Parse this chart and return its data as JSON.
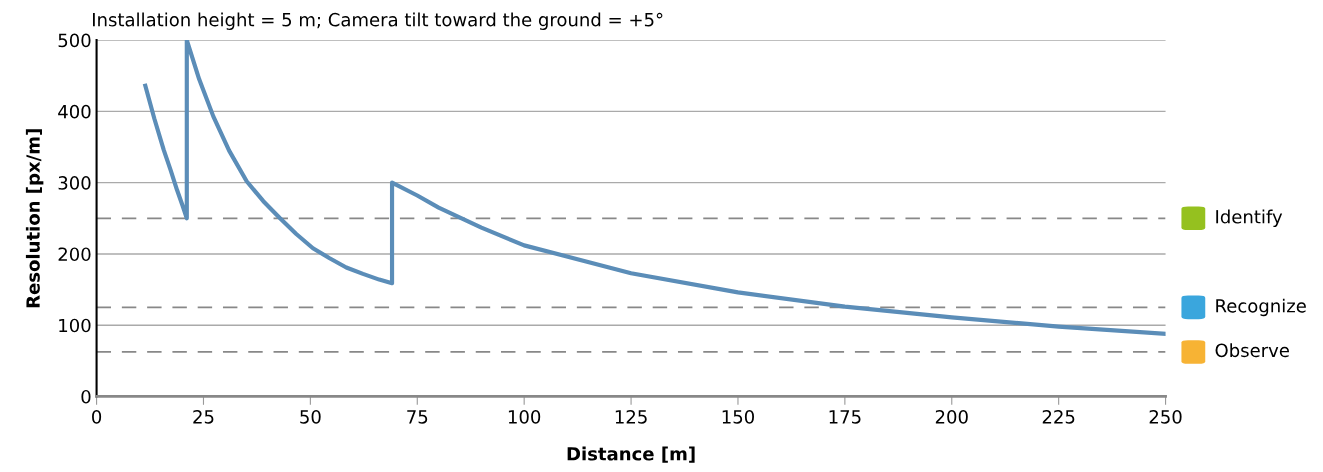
{
  "chart_data": {
    "type": "line",
    "title": "Installation height = 5 m; Camera tilt toward the ground = +5°",
    "xlabel": "Distance [m]",
    "ylabel": "Resolution [px/m]",
    "series": [
      {
        "color": "#5b8db8",
        "x": [
          11.4,
          13.5,
          15.7,
          17.3,
          18.8,
          20.1,
          21.1,
          21.1,
          24,
          27.3,
          31,
          35.1,
          39,
          42.9,
          46.7,
          50.6,
          54.5,
          58.4,
          62.3,
          66.1,
          69.1,
          69.1,
          75,
          80,
          90,
          100,
          125,
          150,
          175,
          200,
          225,
          250
        ],
        "values": [
          436,
          390,
          346,
          318,
          290,
          268,
          250,
          500,
          445,
          393,
          345,
          302,
          274,
          250,
          228,
          208,
          194,
          181,
          172,
          164,
          159,
          300,
          282,
          265,
          237,
          212,
          173,
          146,
          126,
          111,
          98,
          88
        ]
      }
    ],
    "xlim": [
      0,
      250
    ],
    "xticks": [
      0,
      25,
      50,
      75,
      100,
      125,
      150,
      175,
      200,
      225,
      250
    ],
    "ylim": [
      0,
      500
    ],
    "yticks": [
      0,
      100,
      200,
      300,
      400,
      500
    ],
    "grid": "y",
    "marker": "none",
    "line_style": "solid",
    "ref_lines": [
      {
        "axis": "y",
        "value": 250,
        "label": "Identify",
        "color": "#888888",
        "line_style": "dashed"
      },
      {
        "axis": "y",
        "value": 125,
        "label": "Recognize",
        "color": "#888888",
        "line_style": "dashed"
      },
      {
        "axis": "y",
        "value": 62.5,
        "label": "Observe",
        "color": "#888888",
        "line_style": "dashed"
      }
    ]
  }
}
